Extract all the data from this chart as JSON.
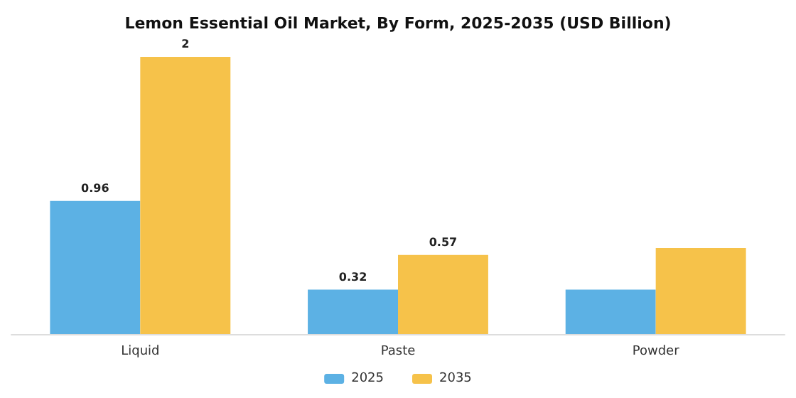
{
  "chart_data": {
    "type": "bar",
    "title": "Lemon Essential Oil Market, By Form, 2025-2035 (USD Billion)",
    "categories": [
      "Liquid",
      "Paste",
      "Powder"
    ],
    "series": [
      {
        "name": "2025",
        "color": "#5cb1e4",
        "values": [
          0.96,
          0.32,
          0.32
        ],
        "value_labels": [
          "0.96",
          "0.32",
          null
        ]
      },
      {
        "name": "2035",
        "color": "#f6c24a",
        "values": [
          2,
          0.57,
          0.62
        ],
        "value_labels": [
          "2",
          "0.57",
          null
        ]
      }
    ],
    "legend": "bottom"
  }
}
